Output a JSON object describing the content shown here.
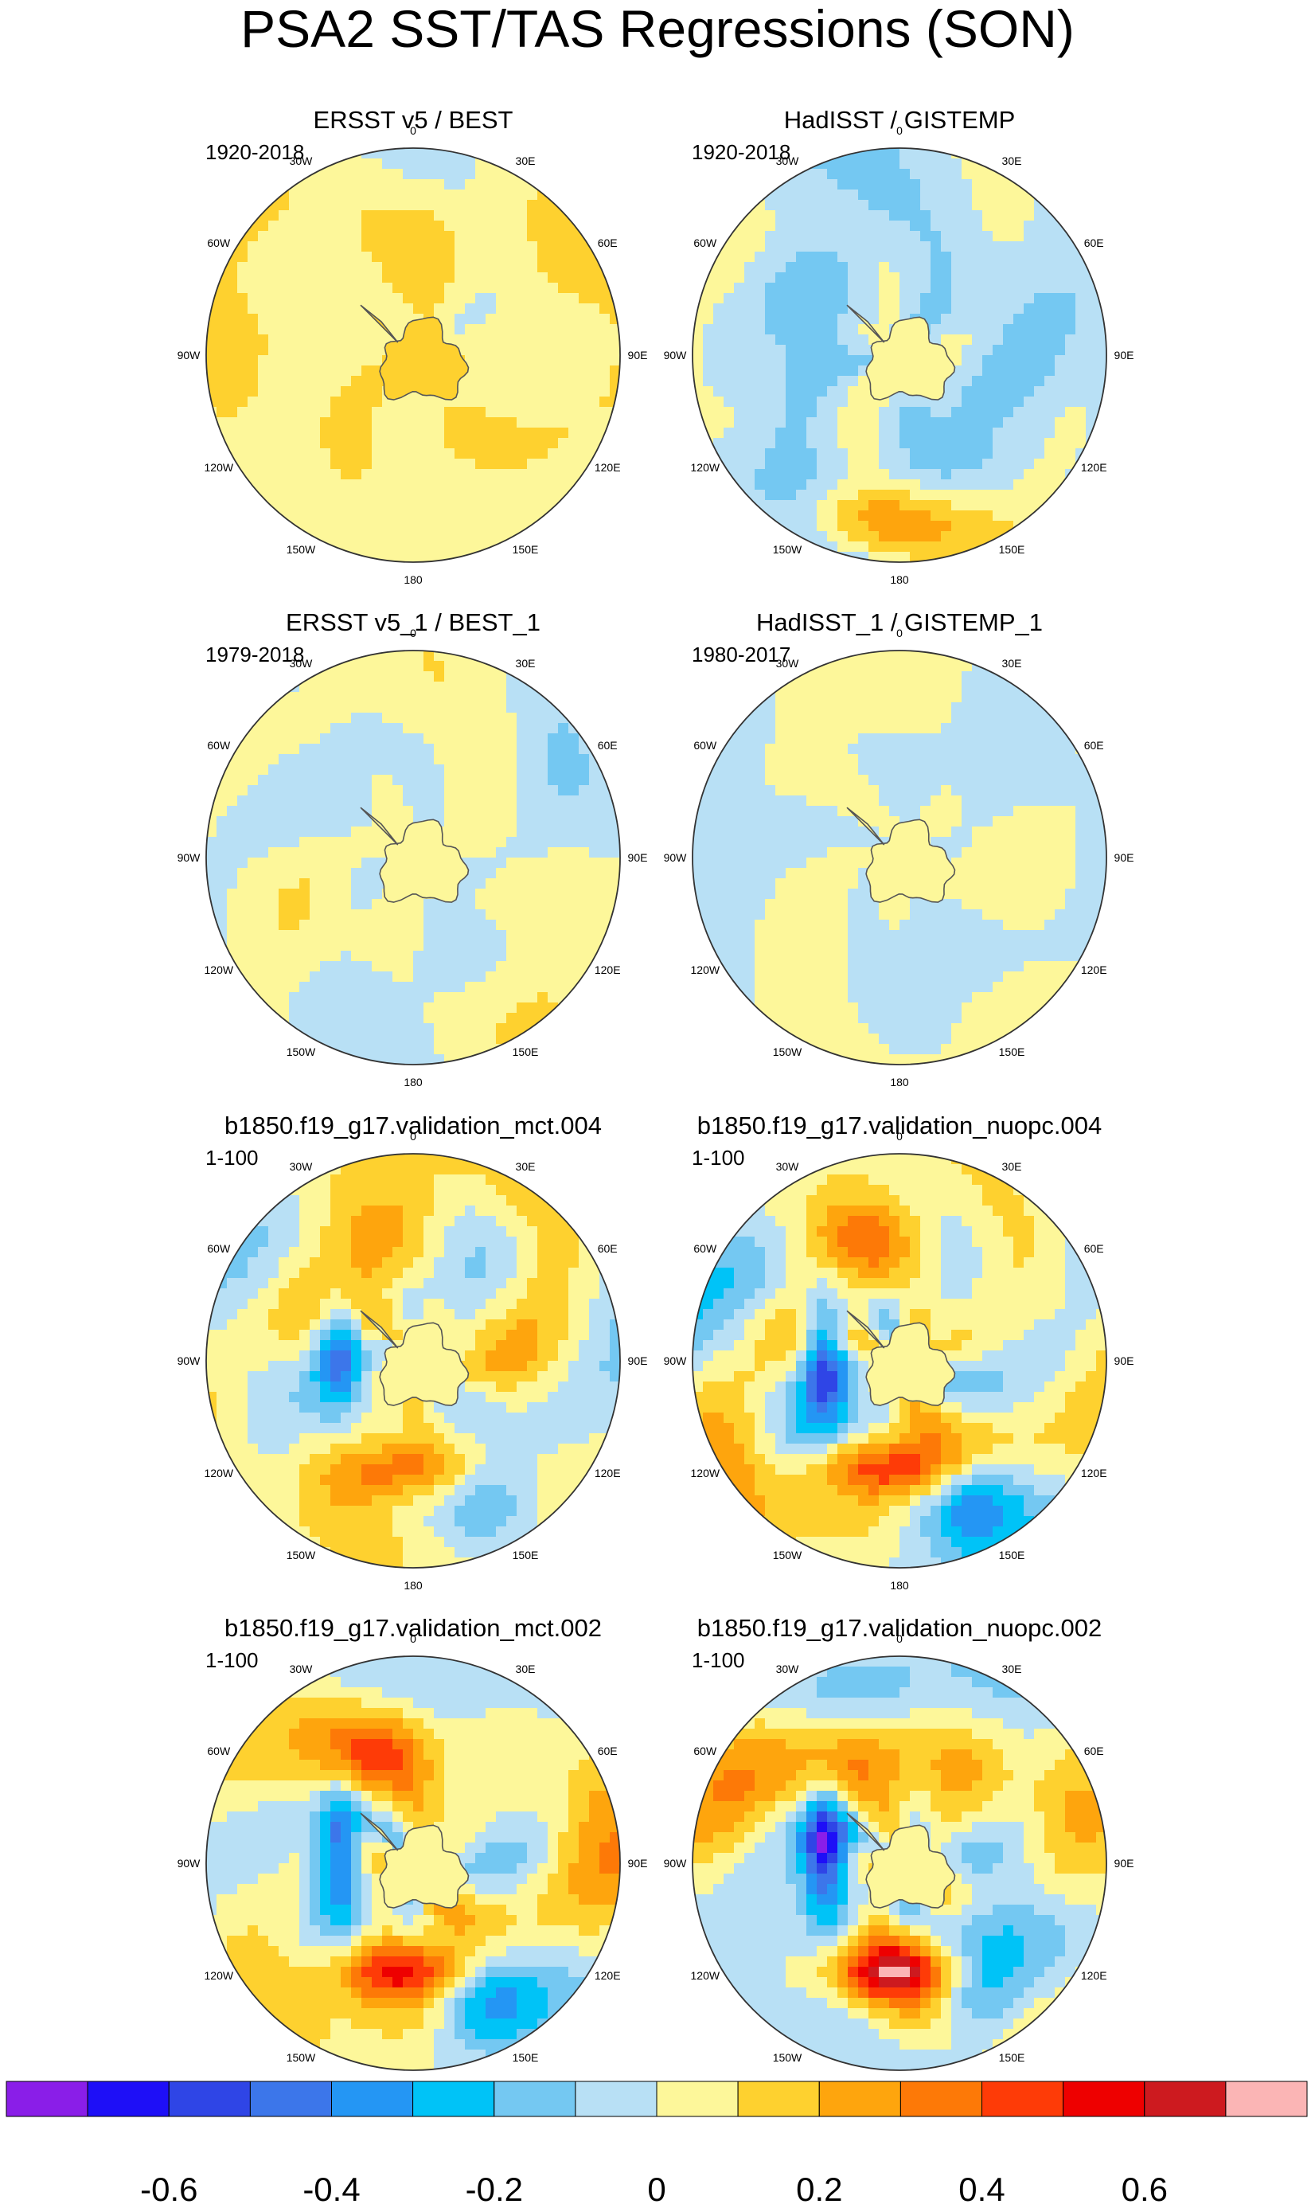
{
  "title": "PSA2 SST/TAS Regressions (SON)",
  "map_labels": {
    "lon_labels": [
      "0",
      "30E",
      "60E",
      "90E",
      "120E",
      "150E",
      "180",
      "150W",
      "120W",
      "90W",
      "60W",
      "30W"
    ],
    "projection": "south-polar stereographic"
  },
  "panels": [
    {
      "title": "ERSST v5 / BEST",
      "period": "1920-2018",
      "pattern": "mostly-positive-weak",
      "amp": 0.12,
      "bias": 0.07
    },
    {
      "title": "HadISST / GISTEMP",
      "period": "1920-2018",
      "pattern": "negative-ring-positive-pacific",
      "amp": 0.16,
      "bias": -0.02
    },
    {
      "title": "ERSST v5_1 / BEST_1",
      "period": "1979-2018",
      "pattern": "mixed-weak",
      "amp": 0.14,
      "bias": 0.01
    },
    {
      "title": "HadISST_1 / GISTEMP_1",
      "period": "1980-2017",
      "pattern": "mixed-weak",
      "amp": 0.1,
      "bias": 0.0
    },
    {
      "title": "b1850.f19_g17.validation_mct.004",
      "period": "1-100",
      "pattern": "psa2-model",
      "amp": 0.24,
      "bias": 0.04
    },
    {
      "title": "b1850.f19_g17.validation_nuopc.004",
      "period": "1-100",
      "pattern": "psa2-model",
      "amp": 0.3,
      "bias": 0.03
    },
    {
      "title": "b1850.f19_g17.validation_mct.002",
      "period": "1-100",
      "pattern": "psa2-model",
      "amp": 0.27,
      "bias": 0.05
    },
    {
      "title": "b1850.f19_g17.validation_nuopc.002",
      "period": "1-100",
      "pattern": "psa2-model",
      "amp": 0.33,
      "bias": 0.02
    }
  ],
  "colorbar": {
    "levels": [
      -0.7,
      -0.6,
      -0.5,
      -0.4,
      -0.3,
      -0.2,
      -0.1,
      0.0,
      0.1,
      0.2,
      0.3,
      0.4,
      0.5,
      0.6,
      0.7
    ],
    "labels": [
      "-0.6",
      "-0.4",
      "-0.2",
      "0",
      "0.2",
      "0.4",
      "0.6"
    ],
    "label_values": [
      -0.6,
      -0.4,
      -0.2,
      0.0,
      0.2,
      0.4,
      0.6
    ],
    "colors": [
      "#8a1ee8",
      "#1e0ff7",
      "#2f45e6",
      "#3c76ea",
      "#2496f4",
      "#00c3f7",
      "#74c8f2",
      "#b8e0f5",
      "#fdf79a",
      "#fed12f",
      "#fea50d",
      "#fd7907",
      "#fe3b07",
      "#ee0000",
      "#cd1a1f",
      "#fbb5b5"
    ]
  }
}
